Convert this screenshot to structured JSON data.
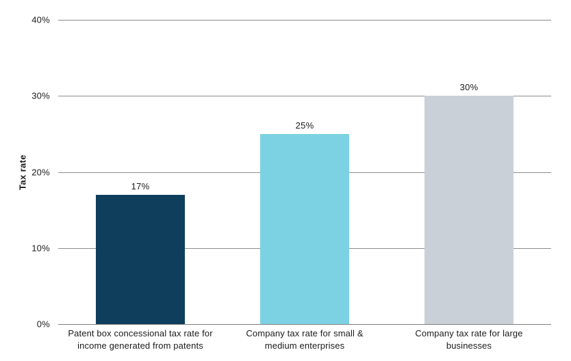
{
  "chart_data": {
    "type": "bar",
    "title": "",
    "xlabel": "",
    "ylabel": "Tax rate",
    "categories": [
      "Patent box concessional tax rate for income generated from patents",
      "Company tax rate for small & medium enterprises",
      "Company tax rate for large businesses"
    ],
    "category_lines": [
      [
        "Patent box concessional tax rate for",
        "income generated from patents"
      ],
      [
        "Company tax rate for small &",
        "medium enterprises"
      ],
      [
        "Company tax rate for large",
        "businesses"
      ]
    ],
    "values": [
      17,
      25,
      30
    ],
    "value_labels": [
      "17%",
      "25%",
      "30%"
    ],
    "bar_colors": [
      "#0e3e5c",
      "#7cd2e2",
      "#cad0d7"
    ],
    "ylim": [
      0,
      40
    ],
    "yticks": [
      0,
      10,
      20,
      30,
      40
    ],
    "ytick_labels": [
      "0%",
      "10%",
      "20%",
      "30%",
      "40%"
    ],
    "grid": "horizontal gridlines at each y tick",
    "legend": "none"
  },
  "colors": {
    "background": "#ffffff",
    "gridline": "#8c8c8c",
    "axis_line": "#7f7f7f",
    "text": "#1a1a1a"
  }
}
